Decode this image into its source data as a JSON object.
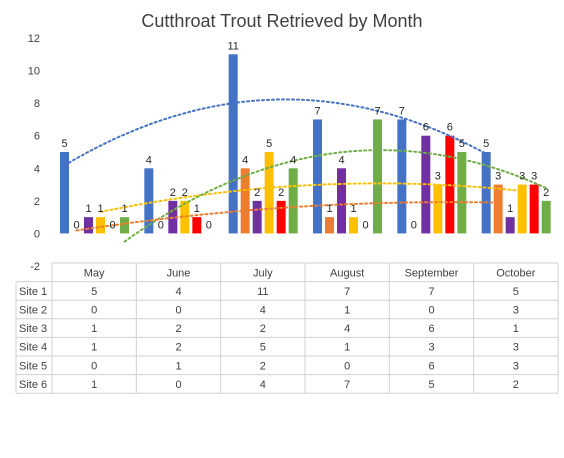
{
  "chart_data": {
    "type": "bar",
    "title": "Cutthroat Trout Retrieved by Month",
    "categories": [
      "May",
      "June",
      "July",
      "August",
      "September",
      "October"
    ],
    "ylim": [
      -2,
      12
    ],
    "yticks": [
      -2,
      0,
      2,
      4,
      6,
      8,
      10,
      12
    ],
    "grid": false,
    "legend": "data-table-below",
    "series": [
      {
        "name": "Site 1",
        "color": "#4472C4",
        "values": [
          5,
          4,
          11,
          7,
          7,
          5
        ]
      },
      {
        "name": "Site 2",
        "color": "#ED7D31",
        "values": [
          0,
          0,
          4,
          1,
          0,
          3
        ]
      },
      {
        "name": "Site 3",
        "color": "#7030A0",
        "values": [
          1,
          2,
          2,
          4,
          6,
          1
        ]
      },
      {
        "name": "Site 4",
        "color": "#FFC000",
        "values": [
          1,
          2,
          5,
          1,
          3,
          3
        ]
      },
      {
        "name": "Site 5",
        "color": "#FF0000",
        "values": [
          0,
          1,
          2,
          0,
          6,
          3
        ]
      },
      {
        "name": "Site 6",
        "color": "#70AD47",
        "values": [
          1,
          0,
          4,
          7,
          5,
          2
        ]
      }
    ],
    "trendlines": [
      {
        "series": "Site 1",
        "type": "polynomial",
        "color": "#4472C4"
      },
      {
        "series": "Site 4",
        "type": "polynomial",
        "color": "#FFC000"
      },
      {
        "series": "Site 6",
        "type": "polynomial",
        "color": "#70AD47"
      },
      {
        "series": "Site 2",
        "type": "polynomial",
        "color": "#ED7D31"
      }
    ]
  }
}
